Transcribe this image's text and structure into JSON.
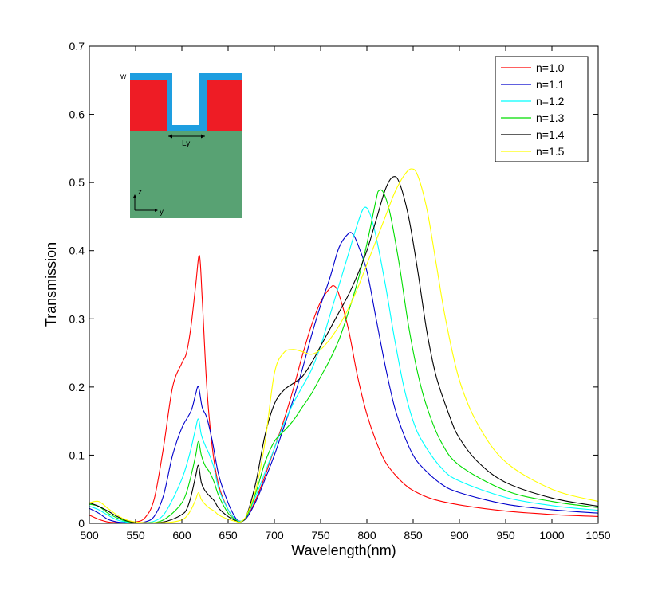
{
  "chart_data": {
    "type": "line",
    "title": "",
    "xlabel": "Wavelength(nm)",
    "ylabel": "Transmission",
    "xlim": [
      500,
      1050
    ],
    "ylim": [
      0,
      0.7
    ],
    "xticks": [
      "500",
      "550",
      "600",
      "650",
      "700",
      "750",
      "800",
      "850",
      "900",
      "950",
      "1000",
      "1050"
    ],
    "yticks": [
      "0",
      "0.1",
      "0.2",
      "0.3",
      "0.4",
      "0.5",
      "0.6",
      "0.7"
    ],
    "grid": false,
    "legend_position": "top-right",
    "series": [
      {
        "name": "n=1.0",
        "color": "#ff0000",
        "points": [
          [
            500,
            0.012
          ],
          [
            510,
            0.006
          ],
          [
            520,
            0.002
          ],
          [
            530,
            0.001
          ],
          [
            540,
            0.001
          ],
          [
            550,
            0.002
          ],
          [
            560,
            0.008
          ],
          [
            570,
            0.035
          ],
          [
            580,
            0.11
          ],
          [
            590,
            0.2
          ],
          [
            600,
            0.235
          ],
          [
            605,
            0.25
          ],
          [
            610,
            0.29
          ],
          [
            615,
            0.35
          ],
          [
            619,
            0.393
          ],
          [
            622,
            0.33
          ],
          [
            627,
            0.2
          ],
          [
            633,
            0.11
          ],
          [
            640,
            0.055
          ],
          [
            650,
            0.02
          ],
          [
            658,
            0.006
          ],
          [
            663,
            0.003
          ],
          [
            670,
            0.008
          ],
          [
            680,
            0.035
          ],
          [
            690,
            0.07
          ],
          [
            700,
            0.11
          ],
          [
            710,
            0.15
          ],
          [
            720,
            0.195
          ],
          [
            730,
            0.245
          ],
          [
            740,
            0.29
          ],
          [
            750,
            0.325
          ],
          [
            760,
            0.345
          ],
          [
            765,
            0.348
          ],
          [
            770,
            0.335
          ],
          [
            780,
            0.285
          ],
          [
            790,
            0.215
          ],
          [
            800,
            0.16
          ],
          [
            810,
            0.12
          ],
          [
            820,
            0.09
          ],
          [
            830,
            0.072
          ],
          [
            840,
            0.058
          ],
          [
            850,
            0.048
          ],
          [
            870,
            0.036
          ],
          [
            900,
            0.027
          ],
          [
            950,
            0.018
          ],
          [
            1000,
            0.013
          ],
          [
            1050,
            0.01
          ]
        ]
      },
      {
        "name": "n=1.1",
        "color": "#0000cc",
        "points": [
          [
            500,
            0.022
          ],
          [
            510,
            0.015
          ],
          [
            520,
            0.006
          ],
          [
            530,
            0.002
          ],
          [
            540,
            0.001
          ],
          [
            550,
            0.001
          ],
          [
            560,
            0.002
          ],
          [
            570,
            0.01
          ],
          [
            580,
            0.04
          ],
          [
            590,
            0.1
          ],
          [
            600,
            0.14
          ],
          [
            610,
            0.165
          ],
          [
            615,
            0.19
          ],
          [
            618,
            0.2
          ],
          [
            622,
            0.17
          ],
          [
            627,
            0.155
          ],
          [
            633,
            0.12
          ],
          [
            640,
            0.07
          ],
          [
            650,
            0.03
          ],
          [
            658,
            0.008
          ],
          [
            663,
            0.003
          ],
          [
            670,
            0.008
          ],
          [
            680,
            0.032
          ],
          [
            690,
            0.065
          ],
          [
            700,
            0.1
          ],
          [
            710,
            0.14
          ],
          [
            720,
            0.18
          ],
          [
            730,
            0.225
          ],
          [
            740,
            0.275
          ],
          [
            750,
            0.32
          ],
          [
            760,
            0.36
          ],
          [
            770,
            0.405
          ],
          [
            780,
            0.425
          ],
          [
            785,
            0.424
          ],
          [
            790,
            0.41
          ],
          [
            800,
            0.37
          ],
          [
            810,
            0.3
          ],
          [
            820,
            0.23
          ],
          [
            830,
            0.17
          ],
          [
            840,
            0.13
          ],
          [
            850,
            0.1
          ],
          [
            860,
            0.082
          ],
          [
            880,
            0.058
          ],
          [
            900,
            0.045
          ],
          [
            950,
            0.028
          ],
          [
            1000,
            0.02
          ],
          [
            1050,
            0.015
          ]
        ]
      },
      {
        "name": "n=1.2",
        "color": "#00ffff",
        "points": [
          [
            500,
            0.025
          ],
          [
            510,
            0.02
          ],
          [
            520,
            0.012
          ],
          [
            530,
            0.005
          ],
          [
            540,
            0.002
          ],
          [
            550,
            0.001
          ],
          [
            560,
            0.001
          ],
          [
            570,
            0.003
          ],
          [
            580,
            0.012
          ],
          [
            590,
            0.035
          ],
          [
            600,
            0.065
          ],
          [
            605,
            0.085
          ],
          [
            610,
            0.11
          ],
          [
            615,
            0.14
          ],
          [
            618,
            0.153
          ],
          [
            621,
            0.13
          ],
          [
            625,
            0.115
          ],
          [
            630,
            0.1
          ],
          [
            635,
            0.08
          ],
          [
            640,
            0.05
          ],
          [
            650,
            0.02
          ],
          [
            658,
            0.006
          ],
          [
            663,
            0.003
          ],
          [
            670,
            0.01
          ],
          [
            680,
            0.04
          ],
          [
            690,
            0.075
          ],
          [
            700,
            0.11
          ],
          [
            710,
            0.145
          ],
          [
            720,
            0.175
          ],
          [
            730,
            0.2
          ],
          [
            740,
            0.225
          ],
          [
            750,
            0.26
          ],
          [
            760,
            0.305
          ],
          [
            770,
            0.35
          ],
          [
            780,
            0.395
          ],
          [
            790,
            0.44
          ],
          [
            797,
            0.463
          ],
          [
            803,
            0.455
          ],
          [
            810,
            0.42
          ],
          [
            820,
            0.35
          ],
          [
            830,
            0.27
          ],
          [
            840,
            0.2
          ],
          [
            850,
            0.15
          ],
          [
            860,
            0.12
          ],
          [
            880,
            0.082
          ],
          [
            900,
            0.062
          ],
          [
            950,
            0.038
          ],
          [
            1000,
            0.026
          ],
          [
            1050,
            0.019
          ]
        ]
      },
      {
        "name": "n=1.3",
        "color": "#00dd00",
        "points": [
          [
            500,
            0.028
          ],
          [
            510,
            0.025
          ],
          [
            520,
            0.015
          ],
          [
            530,
            0.008
          ],
          [
            540,
            0.003
          ],
          [
            550,
            0.001
          ],
          [
            560,
            0.001
          ],
          [
            570,
            0.001
          ],
          [
            580,
            0.005
          ],
          [
            590,
            0.015
          ],
          [
            600,
            0.03
          ],
          [
            605,
            0.045
          ],
          [
            610,
            0.07
          ],
          [
            615,
            0.1
          ],
          [
            618,
            0.12
          ],
          [
            621,
            0.1
          ],
          [
            625,
            0.085
          ],
          [
            630,
            0.075
          ],
          [
            635,
            0.06
          ],
          [
            640,
            0.04
          ],
          [
            650,
            0.015
          ],
          [
            658,
            0.005
          ],
          [
            663,
            0.002
          ],
          [
            670,
            0.01
          ],
          [
            680,
            0.045
          ],
          [
            690,
            0.09
          ],
          [
            700,
            0.12
          ],
          [
            710,
            0.135
          ],
          [
            720,
            0.15
          ],
          [
            730,
            0.17
          ],
          [
            740,
            0.19
          ],
          [
            750,
            0.215
          ],
          [
            760,
            0.24
          ],
          [
            770,
            0.27
          ],
          [
            780,
            0.31
          ],
          [
            790,
            0.355
          ],
          [
            800,
            0.41
          ],
          [
            810,
            0.475
          ],
          [
            813,
            0.488
          ],
          [
            818,
            0.485
          ],
          [
            825,
            0.455
          ],
          [
            835,
            0.38
          ],
          [
            845,
            0.29
          ],
          [
            855,
            0.22
          ],
          [
            865,
            0.17
          ],
          [
            880,
            0.12
          ],
          [
            900,
            0.085
          ],
          [
            950,
            0.048
          ],
          [
            1000,
            0.032
          ],
          [
            1050,
            0.023
          ]
        ]
      },
      {
        "name": "n=1.4",
        "color": "#000000",
        "points": [
          [
            500,
            0.03
          ],
          [
            510,
            0.025
          ],
          [
            520,
            0.018
          ],
          [
            530,
            0.01
          ],
          [
            540,
            0.004
          ],
          [
            550,
            0.001
          ],
          [
            560,
            0.001
          ],
          [
            570,
            0.001
          ],
          [
            580,
            0.002
          ],
          [
            590,
            0.006
          ],
          [
            600,
            0.013
          ],
          [
            605,
            0.02
          ],
          [
            610,
            0.04
          ],
          [
            615,
            0.07
          ],
          [
            618,
            0.085
          ],
          [
            621,
            0.06
          ],
          [
            625,
            0.048
          ],
          [
            630,
            0.04
          ],
          [
            635,
            0.033
          ],
          [
            640,
            0.022
          ],
          [
            650,
            0.01
          ],
          [
            658,
            0.004
          ],
          [
            663,
            0.002
          ],
          [
            670,
            0.012
          ],
          [
            680,
            0.06
          ],
          [
            690,
            0.13
          ],
          [
            700,
            0.175
          ],
          [
            710,
            0.195
          ],
          [
            720,
            0.205
          ],
          [
            730,
            0.215
          ],
          [
            740,
            0.235
          ],
          [
            750,
            0.26
          ],
          [
            760,
            0.285
          ],
          [
            770,
            0.31
          ],
          [
            780,
            0.335
          ],
          [
            790,
            0.365
          ],
          [
            800,
            0.4
          ],
          [
            810,
            0.445
          ],
          [
            820,
            0.49
          ],
          [
            828,
            0.508
          ],
          [
            835,
            0.5
          ],
          [
            845,
            0.45
          ],
          [
            855,
            0.37
          ],
          [
            865,
            0.28
          ],
          [
            875,
            0.215
          ],
          [
            890,
            0.155
          ],
          [
            900,
            0.125
          ],
          [
            920,
            0.09
          ],
          [
            950,
            0.06
          ],
          [
            1000,
            0.037
          ],
          [
            1050,
            0.025
          ]
        ]
      },
      {
        "name": "n=1.5",
        "color": "#ffff00",
        "points": [
          [
            500,
            0.03
          ],
          [
            510,
            0.032
          ],
          [
            520,
            0.022
          ],
          [
            530,
            0.012
          ],
          [
            540,
            0.005
          ],
          [
            550,
            0.002
          ],
          [
            560,
            0.001
          ],
          [
            570,
            0.001
          ],
          [
            580,
            0.001
          ],
          [
            590,
            0.002
          ],
          [
            600,
            0.005
          ],
          [
            605,
            0.01
          ],
          [
            610,
            0.02
          ],
          [
            615,
            0.035
          ],
          [
            618,
            0.045
          ],
          [
            621,
            0.035
          ],
          [
            625,
            0.028
          ],
          [
            630,
            0.022
          ],
          [
            635,
            0.018
          ],
          [
            640,
            0.012
          ],
          [
            650,
            0.006
          ],
          [
            658,
            0.003
          ],
          [
            663,
            0.002
          ],
          [
            670,
            0.012
          ],
          [
            680,
            0.05
          ],
          [
            690,
            0.12
          ],
          [
            700,
            0.22
          ],
          [
            710,
            0.25
          ],
          [
            720,
            0.255
          ],
          [
            730,
            0.252
          ],
          [
            740,
            0.248
          ],
          [
            750,
            0.255
          ],
          [
            760,
            0.27
          ],
          [
            770,
            0.29
          ],
          [
            780,
            0.315
          ],
          [
            790,
            0.345
          ],
          [
            800,
            0.38
          ],
          [
            810,
            0.415
          ],
          [
            820,
            0.45
          ],
          [
            830,
            0.485
          ],
          [
            840,
            0.51
          ],
          [
            848,
            0.52
          ],
          [
            855,
            0.51
          ],
          [
            865,
            0.46
          ],
          [
            875,
            0.38
          ],
          [
            885,
            0.3
          ],
          [
            900,
            0.21
          ],
          [
            920,
            0.145
          ],
          [
            950,
            0.09
          ],
          [
            1000,
            0.05
          ],
          [
            1050,
            0.032
          ]
        ]
      }
    ],
    "inset": {
      "label_w": "w",
      "label_ly": "Ly",
      "label_z": "z",
      "label_y": "y",
      "colors": {
        "coating": "#1e9ee0",
        "metal": "#ee1c25",
        "substrate": "#58a273"
      }
    }
  }
}
